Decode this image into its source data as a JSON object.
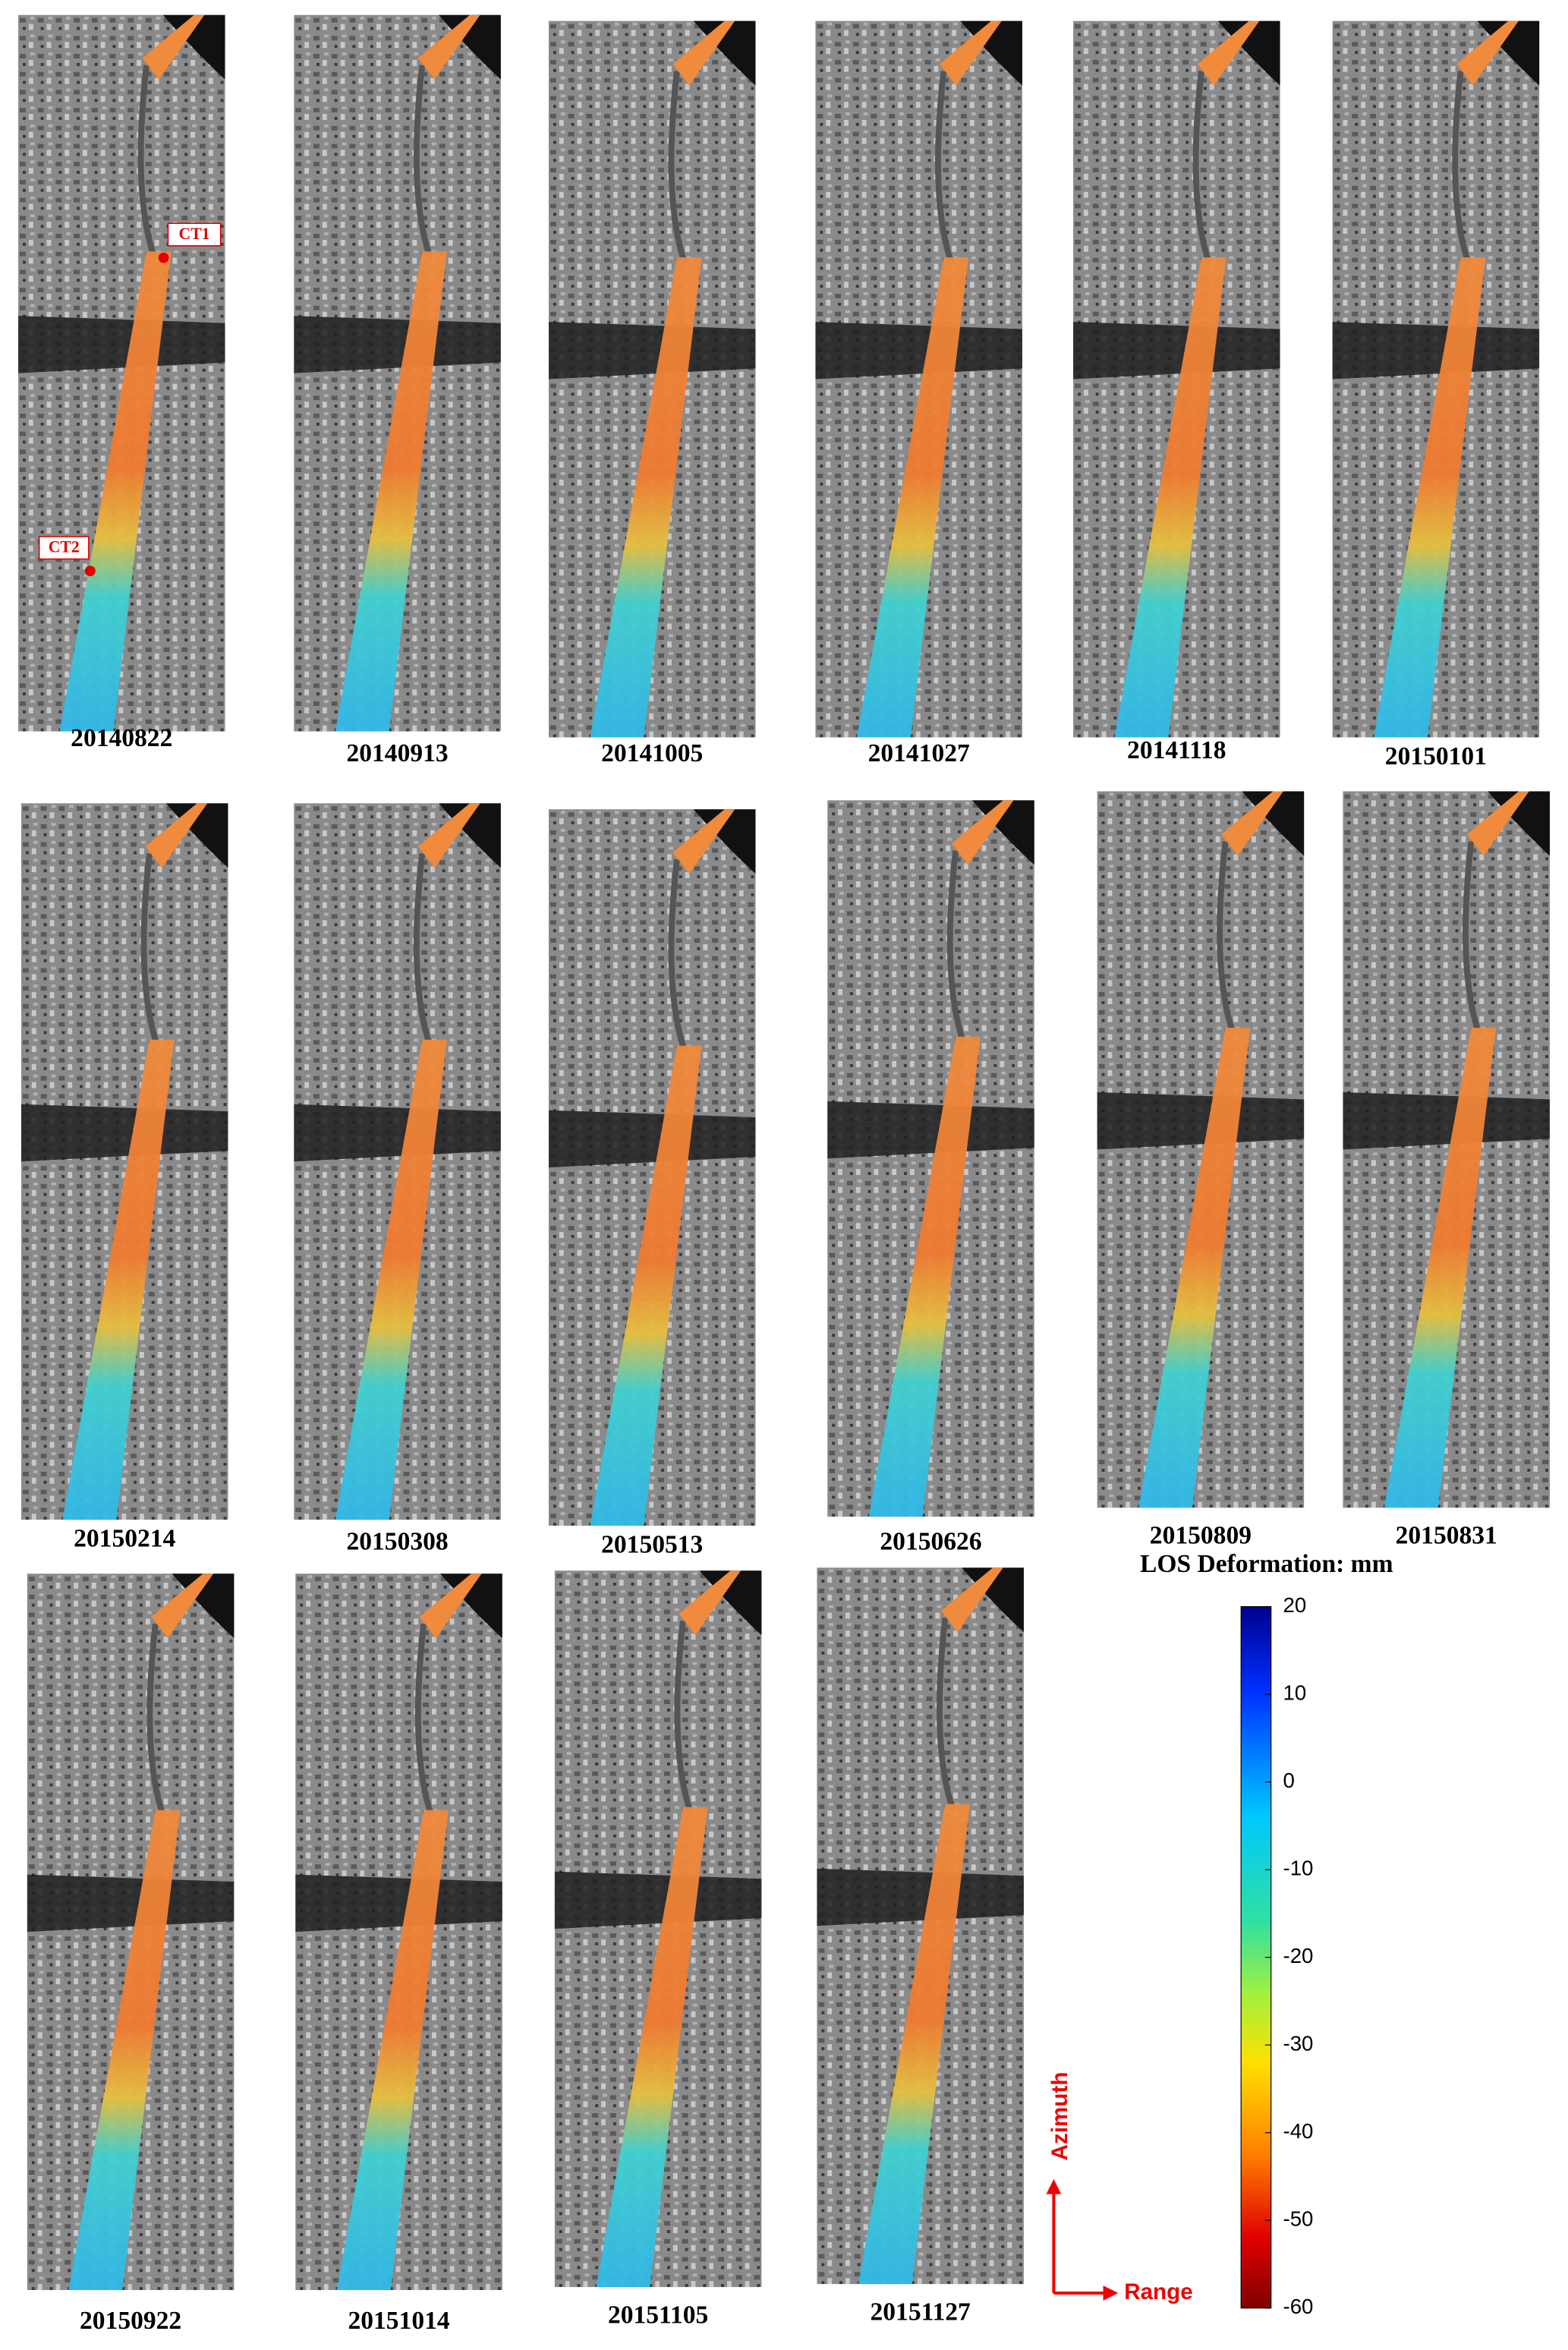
{
  "panels": [
    {
      "date": "20140822"
    },
    {
      "date": "20140913"
    },
    {
      "date": "20141005"
    },
    {
      "date": "20141027"
    },
    {
      "date": "20141118"
    },
    {
      "date": "20150101"
    },
    {
      "date": "20150214"
    },
    {
      "date": "20150308"
    },
    {
      "date": "20150513"
    },
    {
      "date": "20150626"
    },
    {
      "date": "20150809"
    },
    {
      "date": "20150831"
    },
    {
      "date": "20150922"
    },
    {
      "date": "20151014"
    },
    {
      "date": "20151105"
    },
    {
      "date": "20151127"
    }
  ],
  "markers": [
    {
      "label": "CT1"
    },
    {
      "label": "CT2"
    }
  ],
  "colorbar": {
    "title": "LOS Deformation: mm",
    "lim": [
      -60,
      20
    ],
    "ticks": [
      20,
      10,
      0,
      -10,
      -20,
      -30,
      -40,
      -50,
      -60
    ]
  },
  "axes": {
    "azimuth": "Azimuth",
    "range": "Range"
  }
}
